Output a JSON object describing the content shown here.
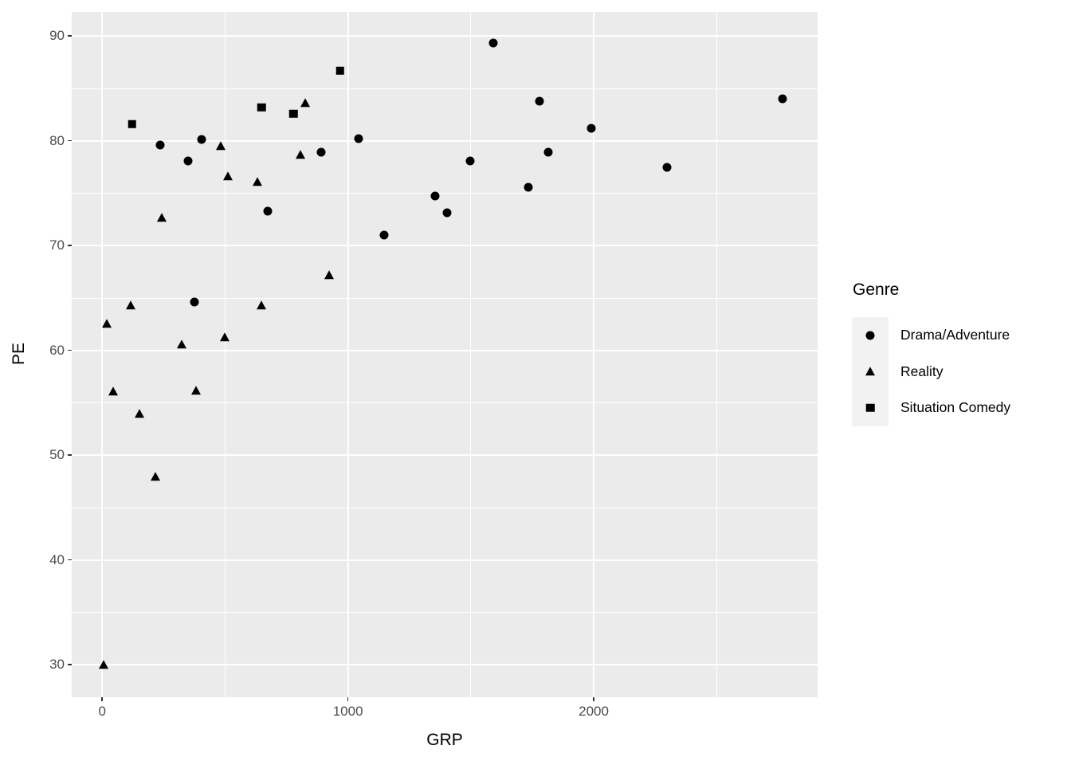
{
  "chart_data": {
    "type": "scatter",
    "title": "",
    "xlabel": "GRP",
    "ylabel": "PE",
    "xlim": [
      -124,
      2911
    ],
    "ylim": [
      26.9,
      92.3
    ],
    "x_ticks": [
      0,
      1000,
      2000
    ],
    "y_ticks": [
      30,
      40,
      50,
      60,
      70,
      80,
      90
    ],
    "x_minor_gridlines": [
      500,
      1500,
      2500
    ],
    "y_minor_gridlines": [
      35,
      45,
      55,
      65,
      75,
      85
    ],
    "grid": true,
    "legend_position": "right",
    "series": [
      {
        "name": "Drama/Adventure",
        "marker": "circle",
        "points": [
          [
            235,
            79.6
          ],
          [
            349,
            78.1
          ],
          [
            375,
            64.6
          ],
          [
            405,
            80.1
          ],
          [
            674,
            73.3
          ],
          [
            890,
            78.9
          ],
          [
            1044,
            80.2
          ],
          [
            1147,
            71.0
          ],
          [
            1353,
            74.7
          ],
          [
            1403,
            73.1
          ],
          [
            1496,
            78.1
          ],
          [
            1591,
            89.3
          ],
          [
            1735,
            75.6
          ],
          [
            1778,
            83.8
          ],
          [
            1814,
            78.9
          ],
          [
            1991,
            81.2
          ],
          [
            2297,
            77.5
          ],
          [
            2767,
            84.0
          ]
        ]
      },
      {
        "name": "Reality",
        "marker": "triangle",
        "points": [
          [
            5,
            30.0
          ],
          [
            19,
            62.6
          ],
          [
            44,
            56.1
          ],
          [
            116,
            64.3
          ],
          [
            152,
            54.0
          ],
          [
            215,
            48.0
          ],
          [
            244,
            72.7
          ],
          [
            322,
            60.6
          ],
          [
            382,
            56.2
          ],
          [
            482,
            79.5
          ],
          [
            497,
            61.3
          ],
          [
            510,
            76.6
          ],
          [
            630,
            76.1
          ],
          [
            648,
            64.3
          ],
          [
            807,
            78.7
          ],
          [
            825,
            83.6
          ],
          [
            922,
            67.2
          ]
        ]
      },
      {
        "name": "Situation Comedy",
        "marker": "square",
        "points": [
          [
            121,
            81.6
          ],
          [
            648,
            83.2
          ],
          [
            778,
            82.6
          ],
          [
            968,
            86.7
          ]
        ]
      }
    ]
  },
  "legend": {
    "title": "Genre"
  },
  "colors": {
    "panel_background": "#EBEBEB",
    "gridline": "#FFFFFF",
    "point": "#000000",
    "tick_label": "#4D4D4D",
    "axis_title": "#000000",
    "legend_key_background": "#F2F2F2",
    "page_background": "#FFFFFF"
  }
}
